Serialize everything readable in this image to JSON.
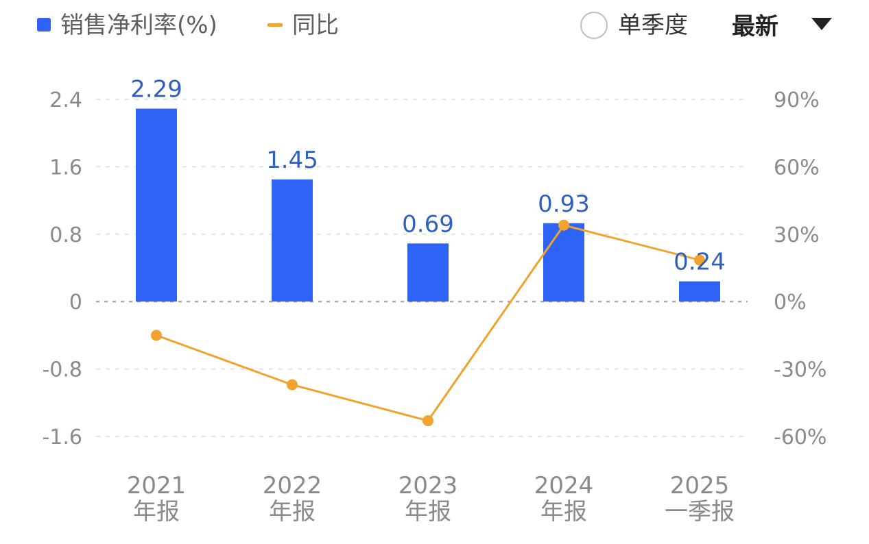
{
  "chart_data": {
    "type": "bar",
    "categories": [
      {
        "year": "2021",
        "period": "年报"
      },
      {
        "year": "2022",
        "period": "年报"
      },
      {
        "year": "2023",
        "period": "年报"
      },
      {
        "year": "2024",
        "period": "年报"
      },
      {
        "year": "2025",
        "period": "一季报"
      }
    ],
    "series": [
      {
        "name": "销售净利率(%)",
        "kind": "bar",
        "axis": "left",
        "values": [
          2.29,
          1.45,
          0.69,
          0.93,
          0.24
        ],
        "color": "#2f63f6"
      },
      {
        "name": "同比",
        "kind": "line",
        "axis": "right",
        "values": [
          -15,
          -37,
          -53,
          34,
          18.5
        ],
        "color": "#f0a32e"
      }
    ],
    "left_axis": {
      "ticks": [
        "2.4",
        "1.6",
        "0.8",
        "0",
        "-0.8",
        "-1.6"
      ],
      "range": [
        -1.6,
        2.4
      ]
    },
    "right_axis": {
      "ticks": [
        "90%",
        "60%",
        "30%",
        "0%",
        "-30%",
        "-60%"
      ],
      "range": [
        -60,
        90
      ]
    },
    "data_labels": [
      "2.29",
      "1.45",
      "0.69",
      "0.93",
      "0.24"
    ],
    "grid": true,
    "legend_position": "top-left"
  },
  "controls": {
    "radio_label": "单季度",
    "dropdown_value": "最新"
  }
}
